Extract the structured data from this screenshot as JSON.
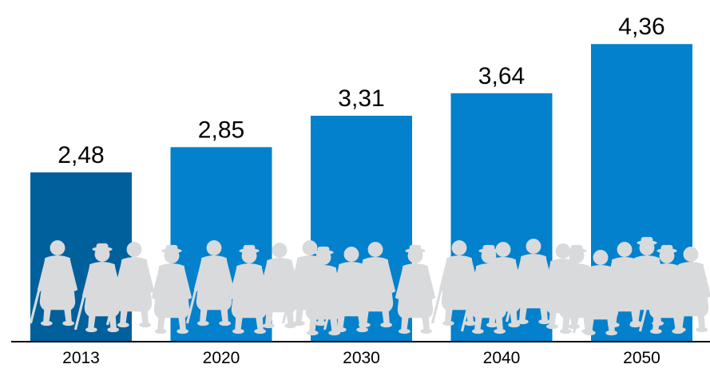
{
  "chart_data": {
    "type": "bar",
    "categories": [
      "2013",
      "2020",
      "2030",
      "2040",
      "2050"
    ],
    "values": [
      2.48,
      2.85,
      3.31,
      3.64,
      4.36
    ],
    "value_labels": [
      "2,48",
      "2,85",
      "3,31",
      "3,64",
      "4,36"
    ],
    "title": "",
    "xlabel": "",
    "ylabel": "",
    "ylim": [
      0,
      4.5
    ],
    "grid": false,
    "legend": "none",
    "colors": {
      "highlight_bar": "#00609c",
      "bar": "#0381cc",
      "silhouette": "#d9dadc",
      "axis": "#000000",
      "text": "#000000"
    },
    "decoration": "elderly-people-silhouettes-icon"
  }
}
